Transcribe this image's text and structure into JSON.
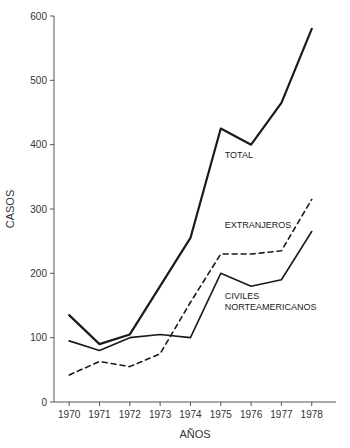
{
  "chart_data": {
    "type": "line",
    "x": [
      1970,
      1971,
      1972,
      1973,
      1974,
      1975,
      1976,
      1977,
      1978
    ],
    "series": [
      {
        "name": "TOTAL",
        "color": "#1a1a1a",
        "line_style": "solid",
        "values": [
          135,
          90,
          105,
          180,
          255,
          425,
          400,
          465,
          580
        ]
      },
      {
        "name": "CIVILES\nNORTEAMERICANOS",
        "color": "#1a1a1a",
        "line_style": "solid",
        "values": [
          95,
          80,
          100,
          105,
          100,
          200,
          180,
          190,
          265
        ]
      },
      {
        "name": "EXTRANJEROS",
        "color": "#1a1a1a",
        "line_style": "dashed",
        "values": [
          42,
          63,
          55,
          75,
          155,
          230,
          230,
          235,
          315
        ]
      }
    ],
    "xlabel": "AÑOS",
    "ylabel": "CASOS",
    "xlim": [
      1969.5,
      1978.8
    ],
    "xticks": [
      1970,
      1971,
      1972,
      1973,
      1974,
      1975,
      1976,
      1977,
      1978
    ],
    "ylim": [
      0,
      600
    ],
    "yticks": [
      0,
      100,
      200,
      300,
      400,
      500,
      600
    ],
    "grid": false
  }
}
